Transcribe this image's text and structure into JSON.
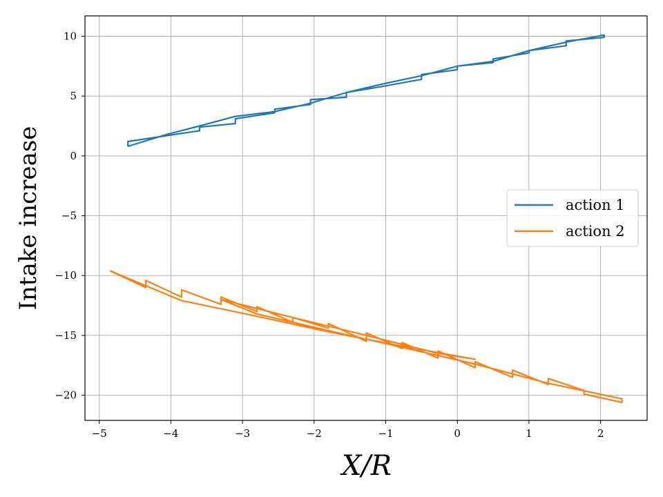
{
  "chart_data": {
    "type": "line",
    "title": "",
    "xlabel": "X/R",
    "ylabel": "Intake increase",
    "xlim": [
      -5.2,
      2.65
    ],
    "ylim": [
      -22.1,
      11.7
    ],
    "xticks": [
      -5,
      -4,
      -3,
      -2,
      -1,
      0,
      1,
      2
    ],
    "yticks": [
      10,
      5,
      0,
      -5,
      -10,
      -15,
      -20
    ],
    "xtick_labels": [
      "−5",
      "−4",
      "−3",
      "−2",
      "−1",
      "0",
      "1",
      "2"
    ],
    "ytick_labels": [
      "10",
      "5",
      "0",
      "−5",
      "−10",
      "−15",
      "−20"
    ],
    "grid": true,
    "legend_position": "center-right",
    "series": [
      {
        "name": "action 1",
        "color": "#1f77b4",
        "x": [
          -4.6,
          -4.6,
          -3.6,
          -3.6,
          -3.1,
          -3.1,
          -2.55,
          -2.55,
          -2.05,
          -2.05,
          -1.55,
          -1.55,
          -1.05,
          -0.5,
          -0.5,
          0.0,
          0.0,
          0.5,
          0.5,
          1.0,
          1.0,
          1.52,
          1.52,
          2.05,
          2.05,
          1.52,
          1.0,
          0.5,
          0.0,
          -0.5,
          -1.05,
          -1.55,
          -2.05,
          -2.55,
          -3.1,
          -3.6,
          -4.05,
          -4.6
        ],
        "y": [
          0.8,
          1.2,
          2.1,
          2.4,
          2.7,
          3.1,
          3.6,
          3.9,
          4.3,
          4.7,
          4.9,
          5.3,
          5.8,
          6.4,
          6.8,
          7.2,
          7.5,
          7.8,
          8.1,
          8.6,
          8.8,
          9.2,
          9.6,
          9.9,
          10.1,
          9.5,
          8.8,
          7.9,
          7.5,
          6.7,
          6.0,
          5.3,
          4.4,
          3.7,
          3.3,
          2.5,
          1.8,
          0.8
        ]
      },
      {
        "name": "action 2",
        "color": "#ff7f0e",
        "x": [
          -4.85,
          -4.35,
          -4.35,
          -3.85,
          -3.85,
          -3.3,
          -3.3,
          -2.8,
          -2.8,
          -2.3,
          -2.3,
          -1.8,
          -1.8,
          -1.27,
          -1.27,
          -0.77,
          -0.77,
          -0.27,
          -0.27,
          0.25,
          0.25,
          0.77,
          0.77,
          1.27,
          1.27,
          1.77,
          1.77,
          2.3,
          2.3,
          1.27,
          0.25,
          -0.77,
          -1.8,
          -2.8,
          -3.3,
          -2.3,
          -1.27,
          -0.27,
          0.25,
          -0.77,
          -1.8,
          -2.8,
          -3.85,
          -4.85
        ],
        "y": [
          -9.6,
          -11.0,
          -10.4,
          -11.8,
          -11.2,
          -12.4,
          -11.8,
          -13.0,
          -12.6,
          -13.9,
          -13.5,
          -14.4,
          -14.0,
          -15.5,
          -14.8,
          -16.1,
          -15.6,
          -16.9,
          -16.3,
          -17.7,
          -17.2,
          -18.5,
          -17.9,
          -19.1,
          -18.6,
          -19.6,
          -19.9,
          -20.6,
          -20.3,
          -19.0,
          -17.4,
          -16.0,
          -14.6,
          -13.2,
          -12.0,
          -13.5,
          -15.0,
          -16.5,
          -17.0,
          -15.9,
          -14.7,
          -13.4,
          -12.1,
          -9.6
        ]
      }
    ]
  }
}
